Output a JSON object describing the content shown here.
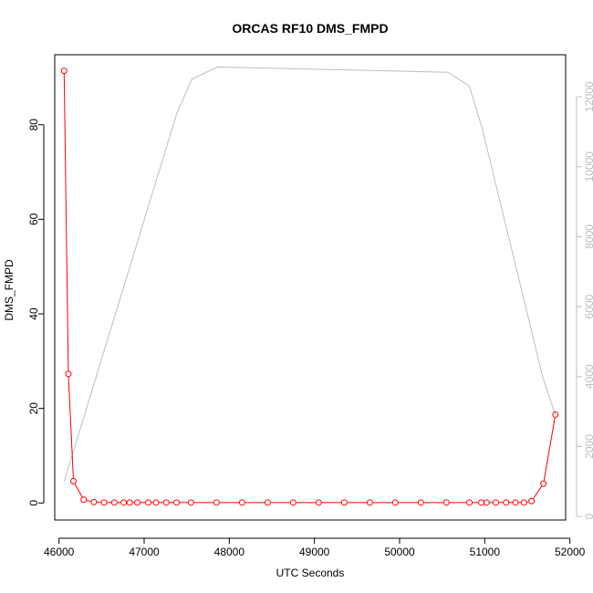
{
  "chart_data": {
    "type": "line",
    "title": "ORCAS RF10 DMS_FMPD",
    "xlabel": "UTC Seconds",
    "ylabel": "DMS_FMPD",
    "xlim": [
      45950,
      51950
    ],
    "ylim_left": [
      -3.6,
      94.8
    ],
    "ylim_right": [
      -100,
      13200
    ],
    "x_ticks": [
      46000,
      47000,
      48000,
      49000,
      50000,
      51000,
      52000
    ],
    "y_ticks_left": [
      0,
      20,
      40,
      60,
      80
    ],
    "y_ticks_right": [
      0,
      2000,
      4000,
      6000,
      8000,
      10000,
      12000
    ],
    "series": [
      {
        "axis": "left",
        "color": "#ff0000",
        "marker": "open-circle",
        "x": [
          46060,
          46110,
          46170,
          46290,
          46410,
          46530,
          46650,
          46760,
          46830,
          46920,
          47050,
          47140,
          47260,
          47380,
          47550,
          47850,
          48150,
          48450,
          48750,
          49050,
          49350,
          49650,
          49950,
          50250,
          50550,
          50820,
          50960,
          51020,
          51130,
          51250,
          51360,
          51460,
          51550,
          51690,
          51830
        ],
        "y": [
          91.4,
          27.3,
          4.6,
          0.7,
          0.2,
          0.1,
          0.1,
          0.1,
          0.1,
          0.1,
          0.1,
          0.1,
          0.1,
          0.1,
          0.1,
          0.1,
          0.1,
          0.1,
          0.1,
          0.1,
          0.1,
          0.1,
          0.1,
          0.1,
          0.1,
          0.1,
          0.1,
          0.1,
          0.1,
          0.1,
          0.1,
          0.1,
          0.4,
          4.1,
          18.7
        ]
      },
      {
        "axis": "right",
        "color": "#bebebe",
        "marker": "none",
        "x": [
          46060,
          47380,
          47560,
          47860,
          50570,
          50820,
          50970,
          51680,
          51830
        ],
        "y": [
          1000,
          11500,
          12500,
          12850,
          12700,
          12300,
          11100,
          4000,
          2900
        ]
      }
    ]
  }
}
